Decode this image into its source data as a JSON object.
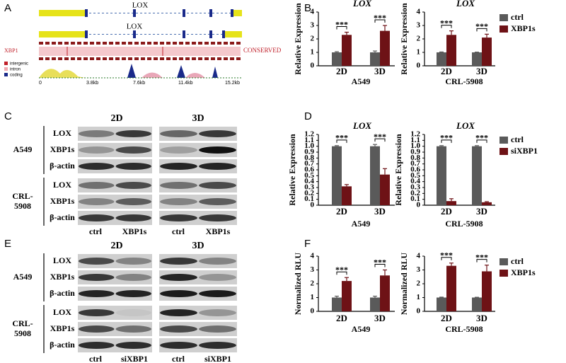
{
  "panel_labels": [
    "A",
    "B",
    "C",
    "D",
    "E",
    "F"
  ],
  "panel_a": {
    "gene_labels": [
      "LOX",
      "LOX"
    ],
    "track_label": "XBP1",
    "conserved_label": "CONSERVED",
    "legend": [
      "intergenic",
      "intron",
      "coding"
    ],
    "scale": [
      "0",
      "3.8kb",
      "7.6kb",
      "11.4kb",
      "15.2kb"
    ]
  },
  "panel_c": {
    "columns": [
      "2D",
      "3D"
    ],
    "groups": [
      {
        "label": [
          "A549"
        ],
        "rows": [
          "LOX",
          "XBP1s",
          "β-actin"
        ]
      },
      {
        "label": [
          "CRL-",
          "5908"
        ],
        "rows": [
          "LOX",
          "XBP1s",
          "β-actin"
        ]
      }
    ],
    "lanes": [
      "ctrl",
      "XBP1s",
      "ctrl",
      "XBP1s"
    ]
  },
  "panel_e": {
    "columns": [
      "2D",
      "3D"
    ],
    "groups": [
      {
        "label": [
          "A549"
        ],
        "rows": [
          "LOX",
          "XBP1s",
          "β-actin"
        ]
      },
      {
        "label": [
          "CRL-",
          "5908"
        ],
        "rows": [
          "LOX",
          "XBP1s",
          "β-actin"
        ]
      }
    ],
    "lanes": [
      "ctrl",
      "siXBP1",
      "ctrl",
      "siXBP1"
    ]
  },
  "chart_data": [
    {
      "type": "bar",
      "title": "LOX",
      "y_label": "Relative Expression",
      "x_label": "A549",
      "categories": [
        "2D",
        "3D"
      ],
      "significance": [
        "***",
        "***"
      ],
      "series": [
        {
          "name": "ctrl",
          "color": "#5a5a5a",
          "values": [
            1.0,
            1.0
          ],
          "errors": [
            0.05,
            0.1
          ]
        },
        {
          "name": "XBP1s",
          "color": "#6e1216",
          "values": [
            2.3,
            2.6
          ],
          "errors": [
            0.2,
            0.4
          ]
        }
      ],
      "ylim": [
        0,
        4
      ],
      "yticks": [
        0,
        1,
        2,
        3,
        4
      ]
    },
    {
      "type": "bar",
      "title": "LOX",
      "y_label": "Relative Expression",
      "x_label": "CRL-5908",
      "categories": [
        "2D",
        "3D"
      ],
      "significance": [
        "***",
        "***"
      ],
      "legend": "right",
      "series": [
        {
          "name": "ctrl",
          "color": "#5a5a5a",
          "values": [
            1.0,
            1.0
          ],
          "errors": [
            0.03,
            0.02
          ]
        },
        {
          "name": "XBP1s",
          "color": "#6e1216",
          "values": [
            2.3,
            2.1
          ],
          "errors": [
            0.3,
            0.25
          ]
        }
      ],
      "ylim": [
        0,
        4
      ],
      "yticks": [
        0,
        1,
        2,
        3,
        4
      ]
    },
    {
      "type": "bar",
      "title": "LOX",
      "y_label": "Relative Expression",
      "x_label": "A549",
      "categories": [
        "2D",
        "3D"
      ],
      "significance": [
        "***",
        "***"
      ],
      "series": [
        {
          "name": "ctrl",
          "color": "#5a5a5a",
          "values": [
            1.0,
            1.0
          ],
          "errors": [
            0.01,
            0.03
          ]
        },
        {
          "name": "siXBP1",
          "color": "#6e1216",
          "values": [
            0.32,
            0.52
          ],
          "errors": [
            0.03,
            0.1
          ]
        }
      ],
      "ylim": [
        0,
        1.2
      ],
      "yticks": [
        0,
        0.1,
        0.2,
        0.3,
        0.4,
        0.5,
        0.6,
        0.7,
        0.8,
        0.9,
        {
          "value": 1,
          "label": "1.0"
        },
        1.1,
        1.2
      ]
    },
    {
      "type": "bar",
      "title": "LOX",
      "y_label": "Relative Expression",
      "x_label": "CRL-5908",
      "categories": [
        "2D",
        "3D"
      ],
      "significance": [
        "***",
        "***"
      ],
      "legend": "right",
      "series": [
        {
          "name": "ctrl",
          "color": "#5a5a5a",
          "values": [
            1.0,
            1.0
          ],
          "errors": [
            0.01,
            0.01
          ]
        },
        {
          "name": "siXBP1",
          "color": "#6e1216",
          "values": [
            0.07,
            0.05
          ],
          "errors": [
            0.04,
            0.01
          ]
        }
      ],
      "ylim": [
        0,
        1.2
      ],
      "yticks": [
        0,
        0.1,
        0.2,
        0.3,
        0.4,
        0.5,
        0.6,
        0.7,
        0.8,
        0.9,
        {
          "value": 1,
          "label": "1.0"
        },
        1.1,
        1.2
      ]
    },
    {
      "type": "bar",
      "y_label": "Normalized RLU",
      "x_label": "A549",
      "categories": [
        "2D",
        "3D"
      ],
      "significance": [
        "***",
        "***"
      ],
      "series": [
        {
          "name": "ctrl",
          "color": "#5a5a5a",
          "values": [
            1.0,
            1.0
          ],
          "errors": [
            0.1,
            0.1
          ]
        },
        {
          "name": "XBP1s",
          "color": "#6e1216",
          "values": [
            2.2,
            2.6
          ],
          "errors": [
            0.25,
            0.4
          ]
        }
      ],
      "ylim": [
        0,
        4
      ],
      "yticks": [
        0,
        1,
        2,
        3,
        4
      ]
    },
    {
      "type": "bar",
      "y_label": "Normalized RLU",
      "x_label": "CRL-5908",
      "categories": [
        "2D",
        "3D"
      ],
      "significance": [
        "***",
        "***"
      ],
      "legend": "right",
      "series": [
        {
          "name": "ctrl",
          "color": "#5a5a5a",
          "values": [
            1.0,
            1.0
          ],
          "errors": [
            0.03,
            0.02
          ]
        },
        {
          "name": "XBP1s",
          "color": "#6e1216",
          "values": [
            3.3,
            2.9
          ],
          "errors": [
            0.2,
            0.45
          ]
        }
      ],
      "ylim": [
        0,
        4
      ],
      "yticks": [
        0,
        1,
        2,
        3,
        4
      ]
    }
  ]
}
